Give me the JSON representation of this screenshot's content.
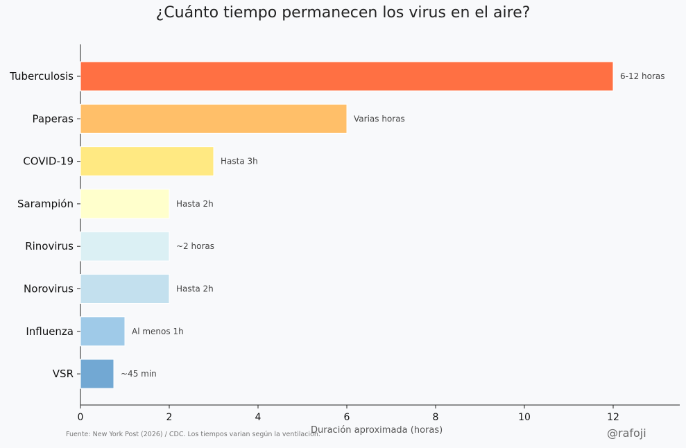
{
  "chart_data": {
    "type": "bar",
    "orientation": "horizontal",
    "title": "¿Cuánto tiempo permanecen los virus en el aire?",
    "xlabel": "Duración aproximada (horas)",
    "ylabel": "",
    "xlim": [
      0,
      13.5
    ],
    "xticks": [
      0,
      2,
      4,
      6,
      8,
      10,
      12
    ],
    "grid": false,
    "categories": [
      "Tuberculosis",
      "Paperas",
      "COVID-19",
      "Sarampión",
      "Rinovirus",
      "Norovirus",
      "Influenza",
      "VSR"
    ],
    "values": [
      12,
      6,
      3,
      2,
      2,
      2,
      1,
      0.75
    ],
    "labels": [
      "6-12 horas",
      "Varias horas",
      "Hasta 3h",
      "Hasta 2h",
      "~2 horas",
      "Hasta 2h",
      "Al menos 1h",
      "~45 min"
    ],
    "colors": [
      "#ff7043",
      "#ffbf69",
      "#ffe982",
      "#ffffcc",
      "#dbf0f4",
      "#c3e0ee",
      "#9fcae8",
      "#72a8d3"
    ]
  },
  "footer": {
    "source": "Fuente: New York Post (2026) / CDC. Los tiempos varian según la ventilación.",
    "handle": "@rafoji"
  }
}
